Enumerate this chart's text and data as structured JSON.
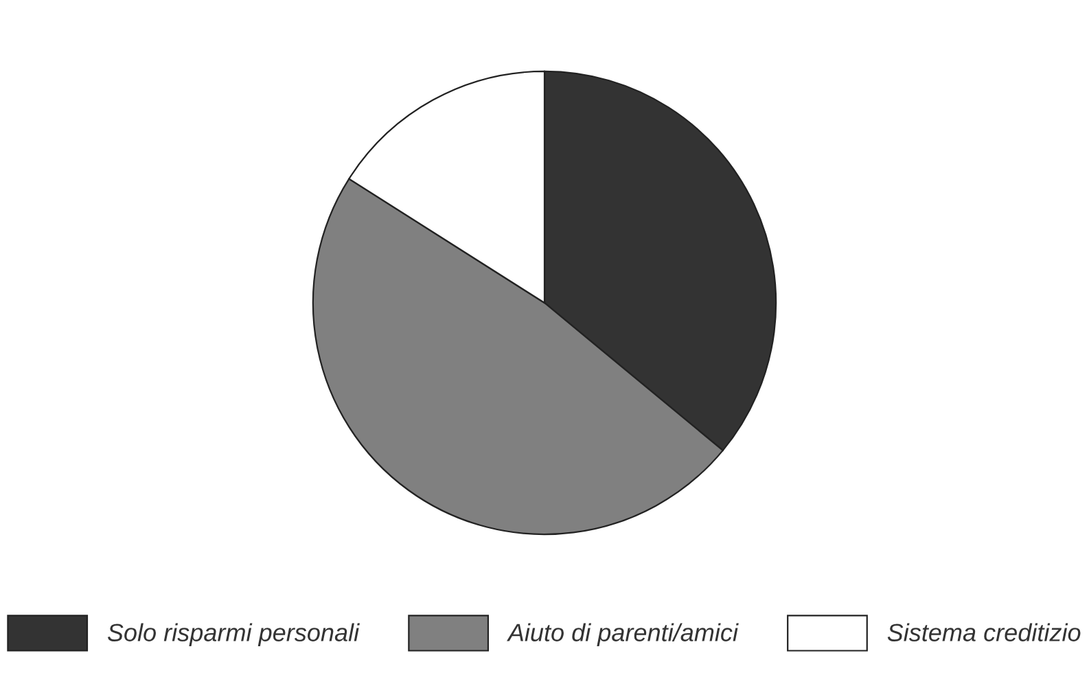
{
  "chart_data": {
    "type": "pie",
    "categories": [
      "Solo risparmi personali",
      "Aiuto di parenti/amici",
      "Sistema creditizio"
    ],
    "values": [
      36,
      48,
      16
    ],
    "colors": [
      "#333333",
      "#808080",
      "#ffffff"
    ],
    "legend": "bottom"
  }
}
